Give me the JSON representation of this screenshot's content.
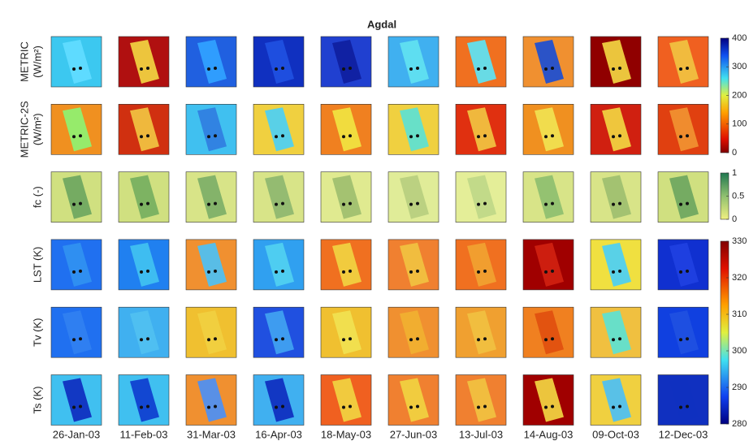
{
  "title": "Agdal",
  "rows": [
    {
      "label": "METRIC",
      "unit": "(W/m²)"
    },
    {
      "label": "METRIC-2S",
      "unit": "(W/m²)"
    },
    {
      "label": "fc (-)"
    },
    {
      "label": "LST (K)"
    },
    {
      "label": "Tv (K)"
    },
    {
      "label": "Ts (K)"
    }
  ],
  "dates": [
    "26-Jan-03",
    "11-Feb-03",
    "31-Mar-03",
    "16-Apr-03",
    "18-May-03",
    "27-Jun-03",
    "13-Jul-03",
    "14-Aug-03",
    "09-Oct-03",
    "12-Dec-03"
  ],
  "colorbars": [
    {
      "lim": [
        0,
        400
      ],
      "ticks": [
        0,
        100,
        200,
        300,
        400
      ]
    },
    {
      "lim": [
        0,
        1
      ],
      "ticks": [
        0,
        0.5,
        1
      ]
    },
    {
      "lim": [
        280,
        330
      ],
      "ticks": [
        280,
        290,
        300,
        310,
        320,
        330
      ]
    }
  ]
}
